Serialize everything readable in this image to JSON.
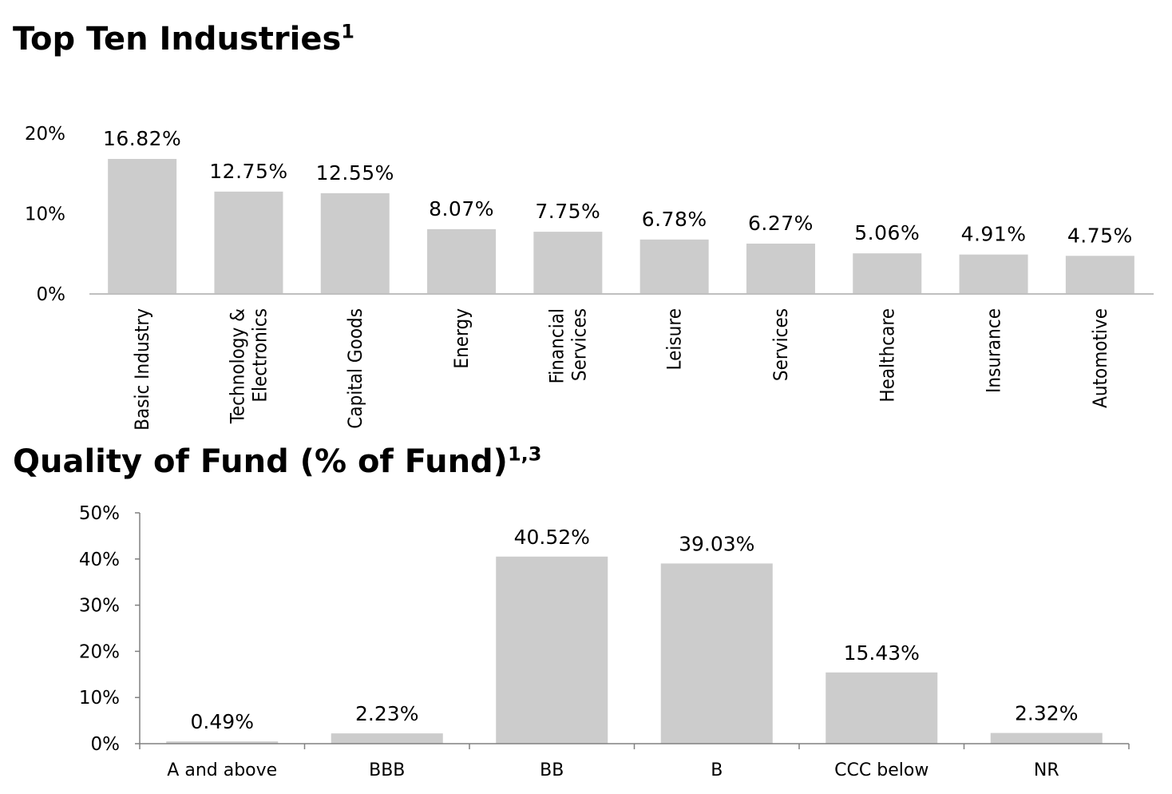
{
  "chart_data": [
    {
      "type": "bar",
      "title": "Top Ten Industries",
      "title_sup": "1",
      "categories": [
        [
          "Basic Industry"
        ],
        [
          "Technology &",
          "Electronics"
        ],
        [
          "Capital Goods"
        ],
        [
          "Energy"
        ],
        [
          "Financial",
          "Services"
        ],
        [
          "Leisure"
        ],
        [
          "Services"
        ],
        [
          "Healthcare"
        ],
        [
          "Insurance"
        ],
        [
          "Automotive"
        ]
      ],
      "values": [
        16.82,
        12.75,
        12.55,
        8.07,
        7.75,
        6.78,
        6.27,
        5.06,
        4.91,
        4.75
      ],
      "data_labels": [
        "16.82%",
        "12.75%",
        "12.55%",
        "8.07%",
        "7.75%",
        "6.78%",
        "6.27%",
        "5.06%",
        "4.91%",
        "4.75%"
      ],
      "ylim": [
        0,
        20
      ],
      "yticks": [
        0,
        10,
        20
      ],
      "ytick_labels": [
        "0%",
        "10%",
        "20%"
      ],
      "bar_color": "#cccccc",
      "category_label_orientation": "vertical",
      "grid": false
    },
    {
      "type": "bar",
      "title": "Quality of Fund (% of Fund)",
      "title_sup": "1,3",
      "categories": [
        [
          "A and above"
        ],
        [
          "BBB"
        ],
        [
          "BB"
        ],
        [
          "B"
        ],
        [
          "CCC below"
        ],
        [
          "NR"
        ]
      ],
      "values": [
        0.49,
        2.23,
        40.52,
        39.03,
        15.43,
        2.32
      ],
      "data_labels": [
        "0.49%",
        "2.23%",
        "40.52%",
        "39.03%",
        "15.43%",
        "2.32%"
      ],
      "ylim": [
        0,
        50
      ],
      "yticks": [
        0,
        10,
        20,
        30,
        40,
        50
      ],
      "ytick_labels": [
        "0%",
        "10%",
        "20%",
        "30%",
        "40%",
        "50%"
      ],
      "bar_color": "#cccccc",
      "category_label_orientation": "horizontal",
      "grid": false
    }
  ],
  "colors": {
    "bar": "#cccccc",
    "axis": "#bfbfbf",
    "axis_dark": "#808080",
    "text": "#000000"
  }
}
